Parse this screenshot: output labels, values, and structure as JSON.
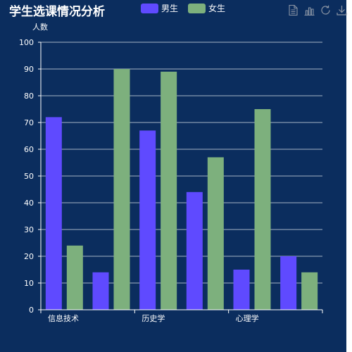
{
  "colors": {
    "background": "#0b2d5e",
    "male": "#5f4aff",
    "female": "#7db07d",
    "axis": "#ffffff",
    "grid": "#ffffff"
  },
  "header": {
    "title": "学生选课情况分析"
  },
  "legend": {
    "items": [
      {
        "label": "男生",
        "color": "#5f4aff"
      },
      {
        "label": "女生",
        "color": "#7db07d"
      }
    ]
  },
  "toolbox": {
    "icons": [
      "data-view-icon",
      "bar-chart-icon",
      "restore-icon",
      "download-icon"
    ]
  },
  "chart_data": {
    "type": "bar",
    "title": "学生选课情况分析",
    "xlabel": "",
    "ylabel": "人数",
    "ylim": [
      0,
      100
    ],
    "yticks": [
      0,
      10,
      20,
      30,
      40,
      50,
      60,
      70,
      80,
      90,
      100
    ],
    "categories": [
      "信息技术",
      "",
      "历史学",
      "",
      "心理学",
      ""
    ],
    "series": [
      {
        "name": "男生",
        "values": [
          72,
          14,
          67,
          44,
          15,
          20
        ]
      },
      {
        "name": "女生",
        "values": [
          24,
          90,
          89,
          57,
          75,
          14
        ]
      }
    ],
    "grid": true,
    "legend_position": "top"
  }
}
